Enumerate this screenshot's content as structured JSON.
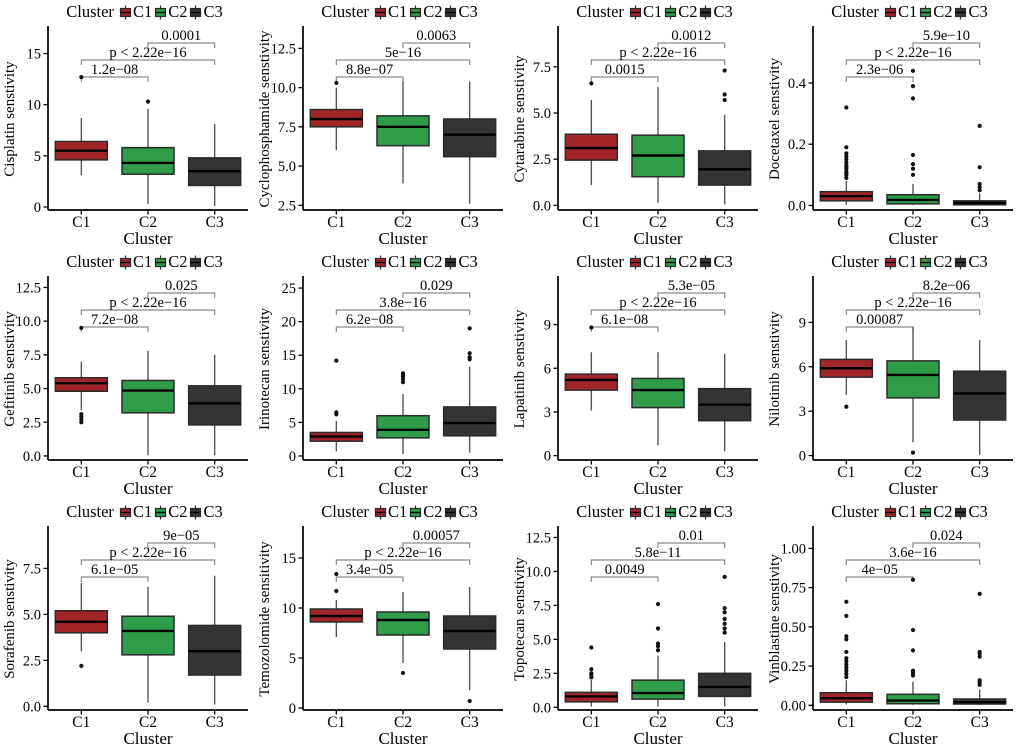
{
  "figure": {
    "description_title": "Drug sensitivity boxplots by cluster",
    "rows": 3,
    "cols": 4
  },
  "colors": {
    "c1": "#A0262A",
    "c2": "#2F9C49",
    "c3": "#343434",
    "box_stroke": "#2b2b2b",
    "median": "#000000",
    "whisker": "#555555",
    "bracket": "#8a8a8a",
    "axis": "#000000",
    "outlier": "#111111",
    "text": "#000000"
  },
  "legend": {
    "title": "Cluster",
    "items": [
      {
        "label": "C1",
        "color": "#A0262A"
      },
      {
        "label": "C2",
        "color": "#2F9C49"
      },
      {
        "label": "C3",
        "color": "#343434"
      }
    ]
  },
  "x_axis": {
    "label": "Cluster",
    "categories": [
      "C1",
      "C2",
      "C3"
    ]
  },
  "chart_data": [
    {
      "type": "box",
      "ylabel": "Cisplatin senstivity",
      "categories": [
        "C1",
        "C2",
        "C3"
      ],
      "ylim": [
        -0.3,
        17.5
      ],
      "ytick_values": [
        0,
        5,
        10,
        15
      ],
      "ytick_labels": [
        "0",
        "5",
        "10",
        "15"
      ],
      "boxes": [
        {
          "cluster": "C1",
          "lo": 3.1,
          "q1": 4.6,
          "median": 5.5,
          "q3": 6.4,
          "hi": 8.7,
          "outliers": [
            12.7
          ]
        },
        {
          "cluster": "C2",
          "lo": 0.3,
          "q1": 3.2,
          "median": 4.3,
          "q3": 5.8,
          "hi": 9.6,
          "outliers": [
            10.3
          ]
        },
        {
          "cluster": "C3",
          "lo": 0.1,
          "q1": 2.1,
          "median": 3.5,
          "q3": 4.8,
          "hi": 8.1,
          "outliers": []
        }
      ],
      "comparisons": [
        {
          "a": "C1",
          "b": "C2",
          "label": "1.2e−08"
        },
        {
          "a": "C1",
          "b": "C3",
          "label": "p < 2.22e−16"
        },
        {
          "a": "C2",
          "b": "C3",
          "label": "0.0001"
        }
      ]
    },
    {
      "type": "box",
      "ylabel": "Cyclophosphamide senstivity",
      "categories": [
        "C1",
        "C2",
        "C3"
      ],
      "ylim": [
        2.2,
        13.8
      ],
      "ytick_values": [
        2.5,
        5.0,
        7.5,
        10.0,
        12.5
      ],
      "ytick_labels": [
        "2.5",
        "5.0",
        "7.5",
        "10.0",
        "12.5"
      ],
      "boxes": [
        {
          "cluster": "C1",
          "lo": 6.0,
          "q1": 7.5,
          "median": 8.0,
          "q3": 8.6,
          "hi": 10.0,
          "outliers": [
            10.3
          ]
        },
        {
          "cluster": "C2",
          "lo": 3.9,
          "q1": 6.3,
          "median": 7.5,
          "q3": 8.2,
          "hi": 10.4,
          "outliers": []
        },
        {
          "cluster": "C3",
          "lo": 2.6,
          "q1": 5.6,
          "median": 7.0,
          "q3": 8.0,
          "hi": 10.4,
          "outliers": []
        }
      ],
      "comparisons": [
        {
          "a": "C1",
          "b": "C2",
          "label": "8.8e−07"
        },
        {
          "a": "C1",
          "b": "C3",
          "label": "5e−16"
        },
        {
          "a": "C2",
          "b": "C3",
          "label": "0.0063"
        }
      ]
    },
    {
      "type": "box",
      "ylabel": "Cytarabine senstivity",
      "categories": [
        "C1",
        "C2",
        "C3"
      ],
      "ylim": [
        -0.25,
        9.6
      ],
      "ytick_values": [
        0.0,
        2.5,
        5.0,
        7.5
      ],
      "ytick_labels": [
        "0.0",
        "2.5",
        "5.0",
        "7.5"
      ],
      "boxes": [
        {
          "cluster": "C1",
          "lo": 1.1,
          "q1": 2.45,
          "median": 3.1,
          "q3": 3.85,
          "hi": 5.7,
          "outliers": [
            6.6
          ]
        },
        {
          "cluster": "C2",
          "lo": 0.15,
          "q1": 1.55,
          "median": 2.7,
          "q3": 3.8,
          "hi": 6.4,
          "outliers": []
        },
        {
          "cluster": "C3",
          "lo": 0.05,
          "q1": 1.1,
          "median": 1.95,
          "q3": 2.95,
          "hi": 4.9,
          "outliers": [
            5.7,
            6.0,
            7.3
          ]
        }
      ],
      "comparisons": [
        {
          "a": "C1",
          "b": "C2",
          "label": "0.0015"
        },
        {
          "a": "C1",
          "b": "C3",
          "label": "p < 2.22e−16"
        },
        {
          "a": "C2",
          "b": "C3",
          "label": "0.0012"
        }
      ]
    },
    {
      "type": "box",
      "ylabel": "Docetaxel senstivity",
      "categories": [
        "C1",
        "C2",
        "C3"
      ],
      "ylim": [
        -0.015,
        0.58
      ],
      "ytick_values": [
        0.0,
        0.2,
        0.4
      ],
      "ytick_labels": [
        "0.0",
        "0.2",
        "0.4"
      ],
      "boxes": [
        {
          "cluster": "C1",
          "lo": 0.002,
          "q1": 0.015,
          "median": 0.03,
          "q3": 0.045,
          "hi": 0.08,
          "outliers": [
            0.09,
            0.1,
            0.105,
            0.11,
            0.12,
            0.125,
            0.13,
            0.14,
            0.15,
            0.16,
            0.17,
            0.19,
            0.32
          ]
        },
        {
          "cluster": "C2",
          "lo": 0.001,
          "q1": 0.005,
          "median": 0.018,
          "q3": 0.035,
          "hi": 0.07,
          "outliers": [
            0.1,
            0.12,
            0.135,
            0.165,
            0.35,
            0.39,
            0.44
          ]
        },
        {
          "cluster": "C3",
          "lo": 0.001,
          "q1": 0.002,
          "median": 0.008,
          "q3": 0.015,
          "hi": 0.04,
          "outliers": [
            0.05,
            0.06,
            0.07,
            0.125,
            0.26
          ]
        }
      ],
      "comparisons": [
        {
          "a": "C1",
          "b": "C2",
          "label": "2.3e−06"
        },
        {
          "a": "C1",
          "b": "C3",
          "label": "p < 2.22e−16"
        },
        {
          "a": "C2",
          "b": "C3",
          "label": "5.9e−10"
        }
      ]
    },
    {
      "type": "box",
      "ylabel": "Gefitinib senstivity",
      "categories": [
        "C1",
        "C2",
        "C3"
      ],
      "ylim": [
        -0.3,
        13.2
      ],
      "ytick_values": [
        0.0,
        2.5,
        5.0,
        7.5,
        10.0,
        12.5
      ],
      "ytick_labels": [
        "0.0",
        "2.5",
        "5.0",
        "7.5",
        "10.0",
        "12.5"
      ],
      "boxes": [
        {
          "cluster": "C1",
          "lo": 3.4,
          "q1": 4.8,
          "median": 5.4,
          "q3": 5.8,
          "hi": 7.0,
          "outliers": [
            2.5,
            2.7,
            2.9,
            3.1,
            9.5
          ]
        },
        {
          "cluster": "C2",
          "lo": 0.05,
          "q1": 3.2,
          "median": 4.85,
          "q3": 5.6,
          "hi": 7.8,
          "outliers": []
        },
        {
          "cluster": "C3",
          "lo": 0.05,
          "q1": 2.3,
          "median": 3.9,
          "q3": 5.2,
          "hi": 7.5,
          "outliers": []
        }
      ],
      "comparisons": [
        {
          "a": "C1",
          "b": "C2",
          "label": "7.2e−08"
        },
        {
          "a": "C1",
          "b": "C3",
          "label": "p < 2.22e−16"
        },
        {
          "a": "C2",
          "b": "C3",
          "label": "0.025"
        }
      ]
    },
    {
      "type": "box",
      "ylabel": "Irinotecan senstivity",
      "categories": [
        "C1",
        "C2",
        "C3"
      ],
      "ylim": [
        -0.6,
        26.5
      ],
      "ytick_values": [
        0,
        5,
        10,
        15,
        20,
        25
      ],
      "ytick_labels": [
        "0",
        "5",
        "10",
        "15",
        "20",
        "25"
      ],
      "boxes": [
        {
          "cluster": "C1",
          "lo": 0.7,
          "q1": 2.2,
          "median": 2.9,
          "q3": 3.5,
          "hi": 5.2,
          "outliers": [
            6.2,
            6.5,
            14.2
          ]
        },
        {
          "cluster": "C2",
          "lo": 0.3,
          "q1": 2.7,
          "median": 3.9,
          "q3": 6.0,
          "hi": 9.2,
          "outliers": [
            11.0,
            11.4,
            11.8,
            12.1,
            12.3
          ]
        },
        {
          "cluster": "C3",
          "lo": 0.5,
          "q1": 3.0,
          "median": 4.9,
          "q3": 7.3,
          "hi": 13.3,
          "outliers": [
            14.4,
            14.7,
            15.3,
            19.0
          ]
        }
      ],
      "comparisons": [
        {
          "a": "C1",
          "b": "C2",
          "label": "6.2e−08"
        },
        {
          "a": "C1",
          "b": "C3",
          "label": "3.8e−16"
        },
        {
          "a": "C2",
          "b": "C3",
          "label": "0.029"
        }
      ]
    },
    {
      "type": "box",
      "ylabel": "Lapatinib senstivity",
      "categories": [
        "C1",
        "C2",
        "C3"
      ],
      "ylim": [
        -0.3,
        12.2
      ],
      "ytick_values": [
        0,
        3,
        6,
        9
      ],
      "ytick_labels": [
        "0",
        "3",
        "6",
        "9"
      ],
      "boxes": [
        {
          "cluster": "C1",
          "lo": 3.1,
          "q1": 4.5,
          "median": 5.2,
          "q3": 5.6,
          "hi": 7.1,
          "outliers": [
            8.8
          ]
        },
        {
          "cluster": "C2",
          "lo": 0.7,
          "q1": 3.3,
          "median": 4.5,
          "q3": 5.3,
          "hi": 7.1,
          "outliers": []
        },
        {
          "cluster": "C3",
          "lo": 0.3,
          "q1": 2.4,
          "median": 3.5,
          "q3": 4.6,
          "hi": 7.0,
          "outliers": []
        }
      ],
      "comparisons": [
        {
          "a": "C1",
          "b": "C2",
          "label": "6.1e−08"
        },
        {
          "a": "C1",
          "b": "C3",
          "label": "p < 2.22e−16"
        },
        {
          "a": "C2",
          "b": "C3",
          "label": "5.3e−05"
        }
      ]
    },
    {
      "type": "box",
      "ylabel": "Nilotinib senstivity",
      "categories": [
        "C1",
        "C2",
        "C3"
      ],
      "ylim": [
        -0.3,
        12.0
      ],
      "ytick_values": [
        0,
        3,
        6,
        9
      ],
      "ytick_labels": [
        "0",
        "3",
        "6",
        "9"
      ],
      "boxes": [
        {
          "cluster": "C1",
          "lo": 4.1,
          "q1": 5.3,
          "median": 5.9,
          "q3": 6.5,
          "hi": 7.8,
          "outliers": [
            3.3
          ]
        },
        {
          "cluster": "C2",
          "lo": 0.9,
          "q1": 3.9,
          "median": 5.45,
          "q3": 6.4,
          "hi": 8.7,
          "outliers": [
            0.2
          ]
        },
        {
          "cluster": "C3",
          "lo": 0.05,
          "q1": 2.4,
          "median": 4.2,
          "q3": 5.7,
          "hi": 7.8,
          "outliers": []
        }
      ],
      "comparisons": [
        {
          "a": "C1",
          "b": "C2",
          "label": "0.00087"
        },
        {
          "a": "C1",
          "b": "C3",
          "label": "p < 2.22e−16"
        },
        {
          "a": "C2",
          "b": "C3",
          "label": "8.2e−06"
        }
      ]
    },
    {
      "type": "box",
      "ylabel": "Sorafenib senstivity",
      "categories": [
        "C1",
        "C2",
        "C3"
      ],
      "ylim": [
        -0.2,
        9.7
      ],
      "ytick_values": [
        0.0,
        2.5,
        5.0,
        7.5
      ],
      "ytick_labels": [
        "0.0",
        "2.5",
        "5.0",
        "7.5"
      ],
      "boxes": [
        {
          "cluster": "C1",
          "lo": 3.0,
          "q1": 4.0,
          "median": 4.6,
          "q3": 5.2,
          "hi": 6.7,
          "outliers": [
            2.2
          ]
        },
        {
          "cluster": "C2",
          "lo": 0.2,
          "q1": 2.8,
          "median": 4.1,
          "q3": 4.9,
          "hi": 6.5,
          "outliers": []
        },
        {
          "cluster": "C3",
          "lo": 0.1,
          "q1": 1.7,
          "median": 3.0,
          "q3": 4.4,
          "hi": 7.1,
          "outliers": []
        }
      ],
      "comparisons": [
        {
          "a": "C1",
          "b": "C2",
          "label": "6.1e−05"
        },
        {
          "a": "C1",
          "b": "C3",
          "label": "p < 2.22e−16"
        },
        {
          "a": "C2",
          "b": "C3",
          "label": "9e−05"
        }
      ]
    },
    {
      "type": "box",
      "ylabel": "Temozolomide sensitivity",
      "categories": [
        "C1",
        "C2",
        "C3"
      ],
      "ylim": [
        -0.2,
        18.0
      ],
      "ytick_values": [
        0,
        5,
        10,
        15
      ],
      "ytick_labels": [
        "0",
        "5",
        "10",
        "15"
      ],
      "boxes": [
        {
          "cluster": "C1",
          "lo": 7.1,
          "q1": 8.6,
          "median": 9.2,
          "q3": 9.9,
          "hi": 10.8,
          "outliers": [
            11.7,
            13.4
          ]
        },
        {
          "cluster": "C2",
          "lo": 4.5,
          "q1": 7.3,
          "median": 8.8,
          "q3": 9.6,
          "hi": 11.6,
          "outliers": [
            3.5
          ]
        },
        {
          "cluster": "C3",
          "lo": 1.8,
          "q1": 5.9,
          "median": 7.7,
          "q3": 9.2,
          "hi": 12.1,
          "outliers": [
            0.7
          ]
        }
      ],
      "comparisons": [
        {
          "a": "C1",
          "b": "C2",
          "label": "3.4e−05"
        },
        {
          "a": "C1",
          "b": "C3",
          "label": "p < 2.22e−16"
        },
        {
          "a": "C2",
          "b": "C3",
          "label": "0.00057"
        }
      ]
    },
    {
      "type": "box",
      "ylabel": "Topotecan senstivity",
      "categories": [
        "C1",
        "C2",
        "C3"
      ],
      "ylim": [
        -0.2,
        13.2
      ],
      "ytick_values": [
        0.0,
        2.5,
        5.0,
        7.5,
        10.0,
        12.5
      ],
      "ytick_labels": [
        "0.0",
        "2.5",
        "5.0",
        "7.5",
        "10.0",
        "12.5"
      ],
      "boxes": [
        {
          "cluster": "C1",
          "lo": 0.05,
          "q1": 0.4,
          "median": 0.8,
          "q3": 1.1,
          "hi": 2.0,
          "outliers": [
            2.2,
            2.35,
            2.5,
            2.8,
            4.4
          ]
        },
        {
          "cluster": "C2",
          "lo": 0.05,
          "q1": 0.6,
          "median": 1.05,
          "q3": 2.0,
          "hi": 3.8,
          "outliers": [
            4.2,
            4.5,
            4.7,
            5.8,
            7.6
          ]
        },
        {
          "cluster": "C3",
          "lo": 0.05,
          "q1": 0.8,
          "median": 1.5,
          "q3": 2.5,
          "hi": 4.8,
          "outliers": [
            5.5,
            5.8,
            6.15,
            6.5,
            7.0,
            7.3,
            9.6
          ]
        }
      ],
      "comparisons": [
        {
          "a": "C1",
          "b": "C2",
          "label": "0.0049"
        },
        {
          "a": "C1",
          "b": "C3",
          "label": "5.8e−11"
        },
        {
          "a": "C2",
          "b": "C3",
          "label": "0.01"
        }
      ]
    },
    {
      "type": "box",
      "ylabel": "Vinblastine senstivity",
      "categories": [
        "C1",
        "C2",
        "C3"
      ],
      "ylim": [
        -0.03,
        1.13
      ],
      "ytick_values": [
        0.0,
        0.25,
        0.5,
        0.75,
        1.0
      ],
      "ytick_labels": [
        "0.00",
        "0.25",
        "0.50",
        "0.75",
        "1.00"
      ],
      "boxes": [
        {
          "cluster": "C1",
          "lo": 0.005,
          "q1": 0.02,
          "median": 0.045,
          "q3": 0.08,
          "hi": 0.16,
          "outliers": [
            0.18,
            0.2,
            0.22,
            0.24,
            0.26,
            0.28,
            0.3,
            0.34,
            0.42,
            0.44,
            0.57,
            0.66
          ]
        },
        {
          "cluster": "C2",
          "lo": 0.003,
          "q1": 0.01,
          "median": 0.03,
          "q3": 0.07,
          "hi": 0.15,
          "outliers": [
            0.19,
            0.205,
            0.22,
            0.35,
            0.48,
            0.8
          ]
        },
        {
          "cluster": "C3",
          "lo": 0.002,
          "q1": 0.008,
          "median": 0.02,
          "q3": 0.04,
          "hi": 0.1,
          "outliers": [
            0.13,
            0.145,
            0.16,
            0.31,
            0.33,
            0.34,
            0.71
          ]
        }
      ],
      "comparisons": [
        {
          "a": "C1",
          "b": "C2",
          "label": "4e−05"
        },
        {
          "a": "C1",
          "b": "C3",
          "label": "3.6e−16"
        },
        {
          "a": "C2",
          "b": "C3",
          "label": "0.024"
        }
      ]
    }
  ]
}
